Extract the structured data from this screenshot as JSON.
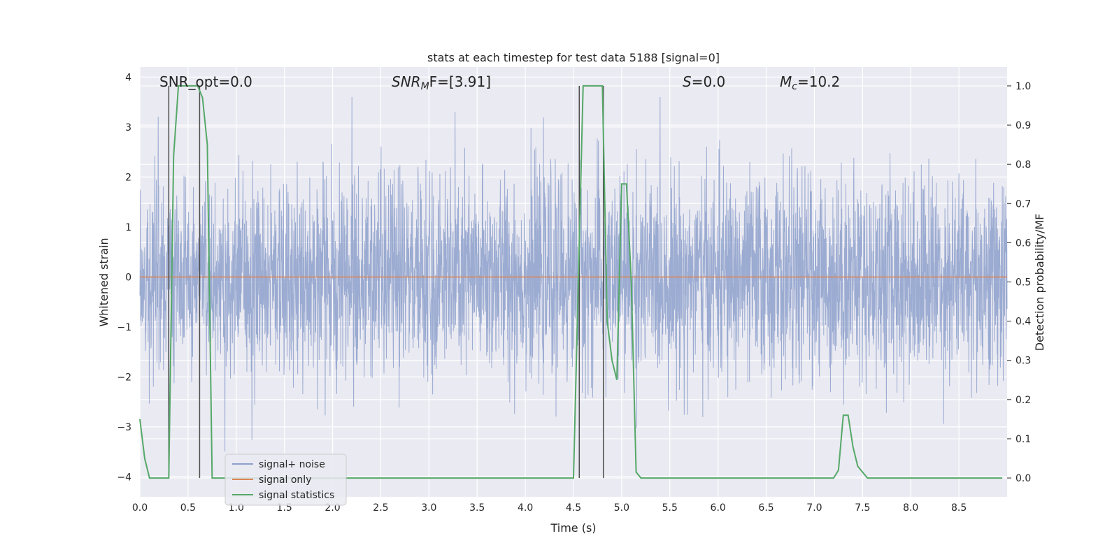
{
  "chart_data": {
    "type": "line",
    "title": "stats at each timestep for test data 5188 [signal=0]",
    "xlabel": "Time (s)",
    "ylabel": "Whitened strain",
    "y2label": "Detection probability/MF",
    "xlim": [
      0.0,
      9.0
    ],
    "ylim": [
      -4.4,
      4.2
    ],
    "y2lim": [
      -0.048,
      1.048
    ],
    "xticks": [
      "0.0",
      "0.5",
      "1.0",
      "1.5",
      "2.0",
      "2.5",
      "3.0",
      "3.5",
      "4.0",
      "4.5",
      "5.0",
      "5.5",
      "6.0",
      "6.5",
      "7.0",
      "7.5",
      "8.0",
      "8.5"
    ],
    "yticks": [
      "4",
      "3",
      "2",
      "1",
      "0",
      "−1",
      "−2",
      "−3",
      "−4"
    ],
    "y2ticks": [
      "1.0",
      "0.9",
      "0.8",
      "0.7",
      "0.6",
      "0.5",
      "0.4",
      "0.3",
      "0.2",
      "0.1",
      "0.0"
    ],
    "grid": true,
    "legend_position": "lower-left",
    "annotations": {
      "snr_opt": "SNR_opt=0.0",
      "snr_mf": "SNR",
      "snr_mf_sub": "M",
      "snr_mf_rest": "F=[3.91]",
      "s_var": "S",
      "s_rest": "=0.0",
      "mc_var": "M",
      "mc_sub": "c",
      "mc_rest": "=10.2"
    },
    "series": [
      {
        "name": "signal+ noise",
        "color": "#8da0cb",
        "description_values": "whitened noise, approx Gaussian, std 1, peaks near ±3.6",
        "noise_std": 1.0,
        "noise_peak": 3.6
      },
      {
        "name": "signal only",
        "color": "#dd8452",
        "constant": 0.0
      },
      {
        "name": "signal statistics",
        "color": "#55a868",
        "axis": "right",
        "x": [
          0.0,
          0.05,
          0.1,
          0.15,
          0.2,
          0.25,
          0.3,
          0.35,
          0.4,
          0.45,
          0.5,
          0.55,
          0.6,
          0.65,
          0.7,
          0.75,
          0.8,
          0.85,
          0.9,
          0.95,
          1.0,
          1.5,
          2.0,
          2.5,
          3.0,
          3.5,
          4.0,
          4.5,
          4.55,
          4.6,
          4.65,
          4.7,
          4.75,
          4.8,
          4.85,
          4.9,
          4.95,
          5.0,
          5.05,
          5.1,
          5.15,
          5.2,
          5.5,
          6.0,
          6.5,
          7.0,
          7.2,
          7.25,
          7.3,
          7.35,
          7.4,
          7.45,
          7.5,
          7.55,
          7.6,
          8.0,
          8.5,
          8.95
        ],
        "values": [
          0.15,
          0.05,
          0.0,
          0.0,
          0.0,
          0.0,
          0.0,
          0.82,
          1.0,
          1.0,
          1.0,
          1.0,
          1.0,
          0.97,
          0.85,
          0.0,
          0.0,
          0.0,
          0.0,
          0.0,
          0.0,
          0.0,
          0.0,
          0.0,
          0.0,
          0.0,
          0.0,
          0.0,
          0.5,
          1.0,
          1.0,
          1.0,
          1.0,
          1.0,
          0.4,
          0.3,
          0.25,
          0.75,
          0.75,
          0.5,
          0.015,
          0.0,
          0.0,
          0.0,
          0.0,
          0.0,
          0.0,
          0.02,
          0.16,
          0.16,
          0.08,
          0.03,
          0.015,
          0.0,
          0.0,
          0.0,
          0.0,
          0.0
        ]
      }
    ],
    "vertical_lines": {
      "color": "#4d4d4d",
      "x": [
        0.3,
        0.62,
        4.56,
        4.81
      ],
      "range_y2": [
        0.0,
        1.0
      ]
    }
  }
}
